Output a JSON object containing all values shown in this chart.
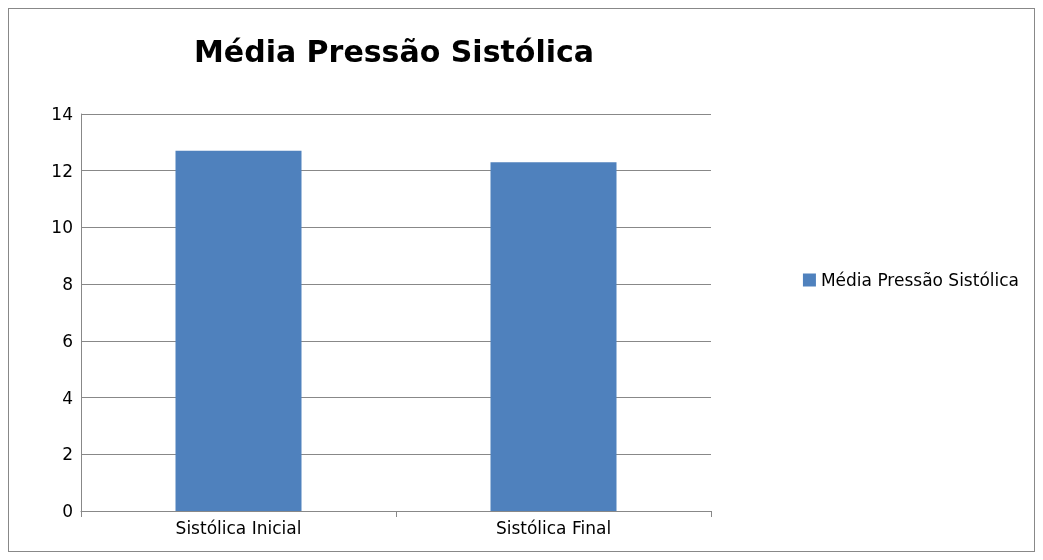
{
  "chart_data": {
    "type": "bar",
    "title": "Média Pressão Sistólica",
    "categories": [
      "Sistólica Inicial",
      "Sistólica Final"
    ],
    "series": [
      {
        "name": "Média Pressão Sistólica",
        "color": "#4f81bd",
        "values": [
          12.7,
          12.3
        ]
      }
    ],
    "ylim": [
      0,
      14
    ],
    "yticks": [
      0,
      2,
      4,
      6,
      8,
      10,
      12,
      14
    ],
    "grid": "y",
    "legend": "right"
  }
}
